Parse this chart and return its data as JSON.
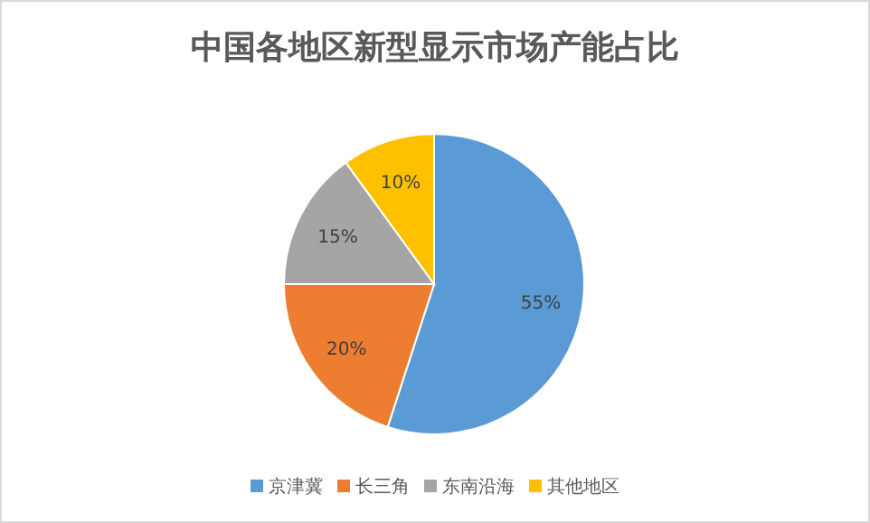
{
  "chart_data": {
    "type": "pie",
    "title": "中国各地区新型显示市场产能占比",
    "categories": [
      "京津冀",
      "长三角",
      "东南沿海",
      "其他地区"
    ],
    "values": [
      55,
      20,
      15,
      10
    ],
    "colors": [
      "#5b9bd5",
      "#ed7d31",
      "#a5a5a5",
      "#ffc000"
    ],
    "value_labels": [
      "55%",
      "20%",
      "15%",
      "10%"
    ],
    "legend": "bottom"
  }
}
